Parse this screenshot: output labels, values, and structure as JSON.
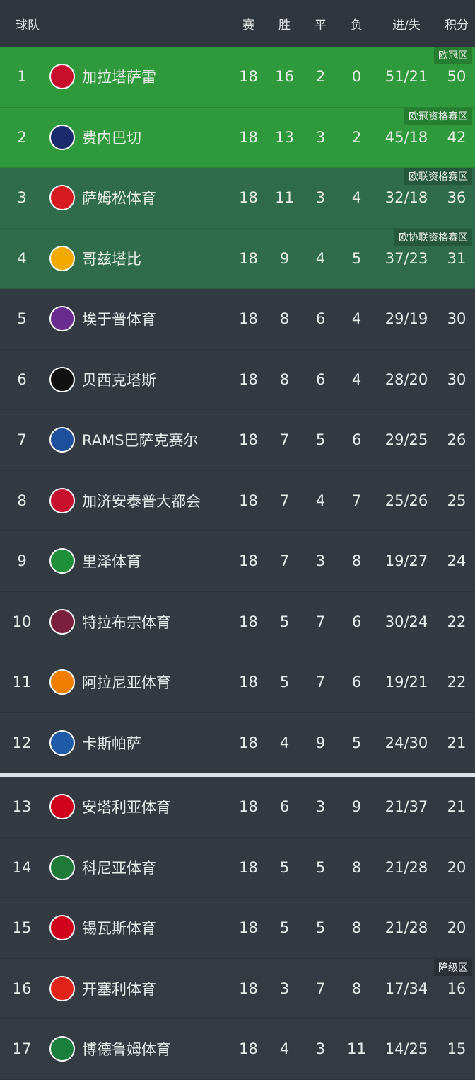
{
  "header": {
    "team": "球队",
    "played": "赛",
    "won": "胜",
    "drawn": "平",
    "lost": "负",
    "goals": "进/失",
    "points": "积分"
  },
  "colors": {
    "champions": "#2f9a3b",
    "europe": "#2e6c4b",
    "default": "#333a42"
  },
  "rows": [
    {
      "rank": "1",
      "name": "加拉塔萨雷",
      "p": "18",
      "w": "16",
      "d": "2",
      "l": "0",
      "g": "51/21",
      "pts": "50",
      "zone": "欧冠区",
      "logo_color": "#c8102e"
    },
    {
      "rank": "2",
      "name": "费内巴切",
      "p": "18",
      "w": "13",
      "d": "3",
      "l": "2",
      "g": "45/18",
      "pts": "42",
      "zone": "欧冠资格赛区",
      "logo_color": "#1b2a6b"
    },
    {
      "rank": "3",
      "name": "萨姆松体育",
      "p": "18",
      "w": "11",
      "d": "3",
      "l": "4",
      "g": "32/18",
      "pts": "36",
      "zone": "欧联资格赛区",
      "logo_color": "#d71920"
    },
    {
      "rank": "4",
      "name": "哥兹塔比",
      "p": "18",
      "w": "9",
      "d": "4",
      "l": "5",
      "g": "37/23",
      "pts": "31",
      "zone": "欧协联资格赛区",
      "logo_color": "#f2a900"
    },
    {
      "rank": "5",
      "name": "埃于普体育",
      "p": "18",
      "w": "8",
      "d": "6",
      "l": "4",
      "g": "29/19",
      "pts": "30",
      "zone": "",
      "logo_color": "#6a2c91"
    },
    {
      "rank": "6",
      "name": "贝西克塔斯",
      "p": "18",
      "w": "8",
      "d": "6",
      "l": "4",
      "g": "28/20",
      "pts": "30",
      "zone": "",
      "logo_color": "#111111"
    },
    {
      "rank": "7",
      "name": "RAMS巴萨克赛尔",
      "p": "18",
      "w": "7",
      "d": "5",
      "l": "6",
      "g": "29/25",
      "pts": "26",
      "zone": "",
      "logo_color": "#1d4f9c"
    },
    {
      "rank": "8",
      "name": "加济安泰普大都会",
      "p": "18",
      "w": "7",
      "d": "4",
      "l": "7",
      "g": "25/26",
      "pts": "25",
      "zone": "",
      "logo_color": "#c8102e"
    },
    {
      "rank": "9",
      "name": "里泽体育",
      "p": "18",
      "w": "7",
      "d": "3",
      "l": "8",
      "g": "19/27",
      "pts": "24",
      "zone": "",
      "logo_color": "#1f8f3a"
    },
    {
      "rank": "10",
      "name": "特拉布宗体育",
      "p": "18",
      "w": "5",
      "d": "7",
      "l": "6",
      "g": "30/24",
      "pts": "22",
      "zone": "",
      "logo_color": "#7a1f3d"
    },
    {
      "rank": "11",
      "name": "阿拉尼亚体育",
      "p": "18",
      "w": "5",
      "d": "7",
      "l": "6",
      "g": "19/21",
      "pts": "22",
      "zone": "",
      "logo_color": "#f07f00"
    },
    {
      "rank": "12",
      "name": "卡斯帕萨",
      "p": "18",
      "w": "4",
      "d": "9",
      "l": "5",
      "g": "24/30",
      "pts": "21",
      "zone": "",
      "logo_color": "#1e5aa8"
    },
    {
      "rank": "13",
      "name": "安塔利亚体育",
      "p": "18",
      "w": "6",
      "d": "3",
      "l": "9",
      "g": "21/37",
      "pts": "21",
      "zone": "",
      "logo_color": "#d0021b"
    },
    {
      "rank": "14",
      "name": "科尼亚体育",
      "p": "18",
      "w": "5",
      "d": "5",
      "l": "8",
      "g": "21/28",
      "pts": "20",
      "zone": "",
      "logo_color": "#1f7a3a"
    },
    {
      "rank": "15",
      "name": "锡瓦斯体育",
      "p": "18",
      "w": "5",
      "d": "5",
      "l": "8",
      "g": "21/28",
      "pts": "20",
      "zone": "",
      "logo_color": "#d0021b"
    },
    {
      "rank": "16",
      "name": "开塞利体育",
      "p": "18",
      "w": "3",
      "d": "7",
      "l": "8",
      "g": "17/34",
      "pts": "16",
      "zone": "降级区",
      "logo_color": "#e2231a"
    },
    {
      "rank": "17",
      "name": "博德鲁姆体育",
      "p": "18",
      "w": "4",
      "d": "3",
      "l": "11",
      "g": "14/25",
      "pts": "15",
      "zone": "",
      "logo_color": "#1a7f3c"
    }
  ]
}
